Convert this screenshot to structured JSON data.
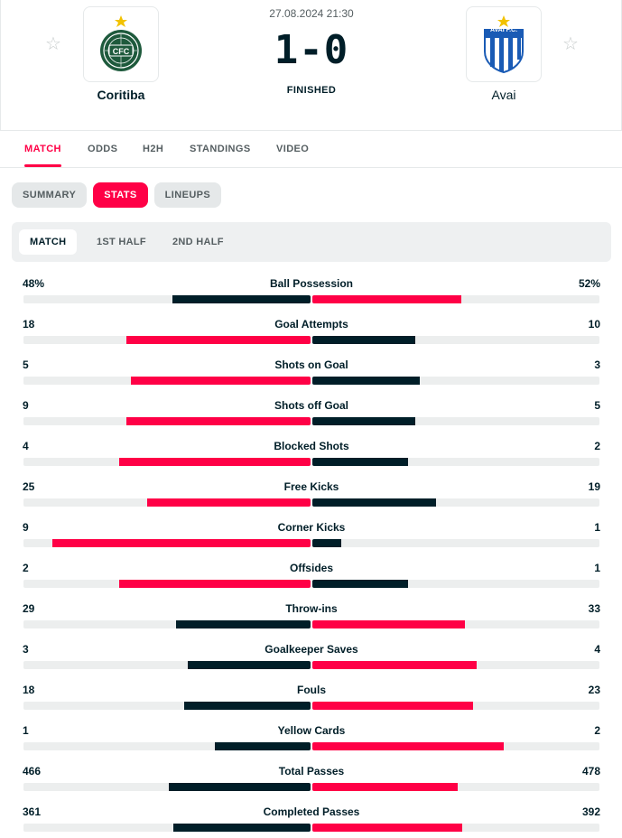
{
  "match": {
    "datetime": "27.08.2024 21:30",
    "score": "1-0",
    "status": "FINISHED",
    "home": {
      "name": "Coritiba",
      "logo_text": "CFC",
      "logo_color": "#1e5a3c"
    },
    "away": {
      "name": "Avai",
      "logo_text": "AVAÍ F.C.",
      "logo_color": "#1a5bb5"
    }
  },
  "main_tabs": [
    "MATCH",
    "ODDS",
    "H2H",
    "STANDINGS",
    "VIDEO"
  ],
  "pills": [
    "SUMMARY",
    "STATS",
    "LINEUPS"
  ],
  "period_tabs": [
    "MATCH",
    "1ST HALF",
    "2ND HALF"
  ],
  "colors": {
    "accent": "#ff0046",
    "dark": "#001e28",
    "track": "#eceeee"
  },
  "stats": [
    {
      "label": "Ball Possession",
      "home": "48%",
      "away": "52%",
      "home_val": 48,
      "away_val": 52
    },
    {
      "label": "Goal Attempts",
      "home": "18",
      "away": "10",
      "home_val": 18,
      "away_val": 10
    },
    {
      "label": "Shots on Goal",
      "home": "5",
      "away": "3",
      "home_val": 5,
      "away_val": 3
    },
    {
      "label": "Shots off Goal",
      "home": "9",
      "away": "5",
      "home_val": 9,
      "away_val": 5
    },
    {
      "label": "Blocked Shots",
      "home": "4",
      "away": "2",
      "home_val": 4,
      "away_val": 2
    },
    {
      "label": "Free Kicks",
      "home": "25",
      "away": "19",
      "home_val": 25,
      "away_val": 19
    },
    {
      "label": "Corner Kicks",
      "home": "9",
      "away": "1",
      "home_val": 9,
      "away_val": 1
    },
    {
      "label": "Offsides",
      "home": "2",
      "away": "1",
      "home_val": 2,
      "away_val": 1
    },
    {
      "label": "Throw-ins",
      "home": "29",
      "away": "33",
      "home_val": 29,
      "away_val": 33
    },
    {
      "label": "Goalkeeper Saves",
      "home": "3",
      "away": "4",
      "home_val": 3,
      "away_val": 4
    },
    {
      "label": "Fouls",
      "home": "18",
      "away": "23",
      "home_val": 18,
      "away_val": 23
    },
    {
      "label": "Yellow Cards",
      "home": "1",
      "away": "2",
      "home_val": 1,
      "away_val": 2
    },
    {
      "label": "Total Passes",
      "home": "466",
      "away": "478",
      "home_val": 466,
      "away_val": 478
    },
    {
      "label": "Completed Passes",
      "home": "361",
      "away": "392",
      "home_val": 361,
      "away_val": 392
    }
  ]
}
